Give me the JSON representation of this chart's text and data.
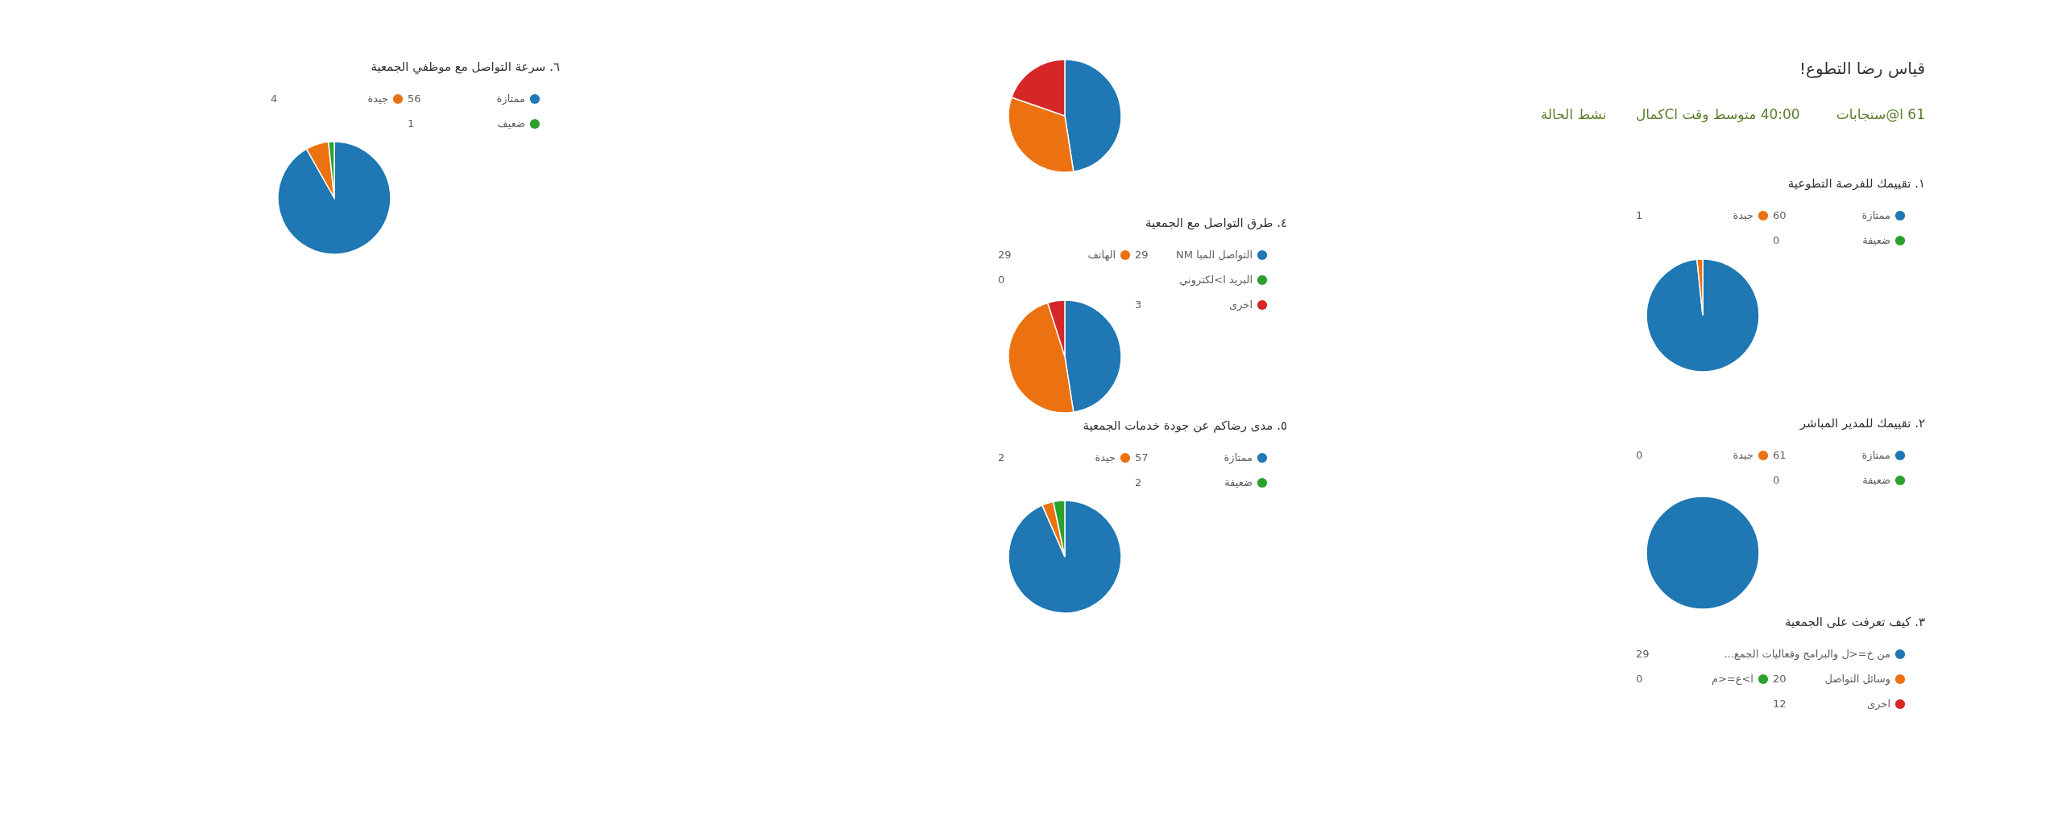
{
  "chart_data": [
    {
      "type": "other",
      "title": "قياس رضا التطوع!",
      "annotations": [
        "61 ا@ستجابات",
        "40:00 متوسط وقت اCكمال",
        "نشط الحالة"
      ]
    },
    {
      "type": "pie",
      "title": "١. تقييمك للفرصة التطوعية",
      "categories": [
        "ممتازة",
        "جيدة",
        "ضعيفة"
      ],
      "values": [
        60,
        1,
        0
      ],
      "value_labels": [
        "60",
        "1",
        "0"
      ],
      "colors": [
        "#1f77b4",
        "#ec7211",
        "#2ca02c"
      ],
      "legend": "top right"
    },
    {
      "type": "pie",
      "title": "٢. تقييمك للمدير المباشر",
      "categories": [
        "ممتازة",
        "جيدة",
        "ضعيفة"
      ],
      "values": [
        61,
        0,
        0
      ],
      "value_labels": [
        "61",
        "0",
        "0"
      ],
      "colors": [
        "#1f77b4",
        "#ec7211",
        "#2ca02c"
      ],
      "legend": "top right"
    },
    {
      "type": "pie",
      "title": "٣. كيف تعرفت على الجمعية",
      "categories": [
        "من خ=<ل والبرامج وفعاليات الجمع...",
        "وسائل التواصل",
        "ا>ع=<م",
        "اخرى"
      ],
      "values": [
        29,
        20,
        0,
        12
      ],
      "value_labels": [
        "29",
        "20",
        "0",
        "12"
      ],
      "colors": [
        "#1f77b4",
        "#ec7211",
        "#2ca02c",
        "#d62728"
      ],
      "legend": "bottom right"
    },
    {
      "type": "pie",
      "title": "٤. طرق التواصل مع الجمعية",
      "categories": [
        "التواصل المبا NM",
        "الهاتف",
        "البريد ا>لكتروني",
        "اخرى"
      ],
      "values": [
        29,
        29,
        0,
        3
      ],
      "value_labels": [
        "29",
        "29",
        "0",
        "3"
      ],
      "colors": [
        "#1f77b4",
        "#ec7211",
        "#2ca02c",
        "#d62728"
      ],
      "legend": "top right"
    },
    {
      "type": "pie",
      "title": "٥. مدى رضاكم عن جودة خدمات الجمعية",
      "categories": [
        "ممتازة",
        "جيدة",
        "ضعيفة"
      ],
      "values": [
        57,
        2,
        2
      ],
      "value_labels": [
        "57",
        "2",
        "2"
      ],
      "colors": [
        "#1f77b4",
        "#ec7211",
        "#2ca02c"
      ],
      "legend": "top right"
    },
    {
      "type": "pie",
      "title": "٦. سرعة التواصل مع موظفي الجمعية",
      "categories": [
        "ممتازة",
        "جيدة",
        "ضعيف"
      ],
      "values": [
        56,
        4,
        1
      ],
      "value_labels": [
        "56",
        "4",
        "1"
      ],
      "colors": [
        "#1f77b4",
        "#ec7211",
        "#2ca02c"
      ],
      "legend": "top right"
    }
  ]
}
